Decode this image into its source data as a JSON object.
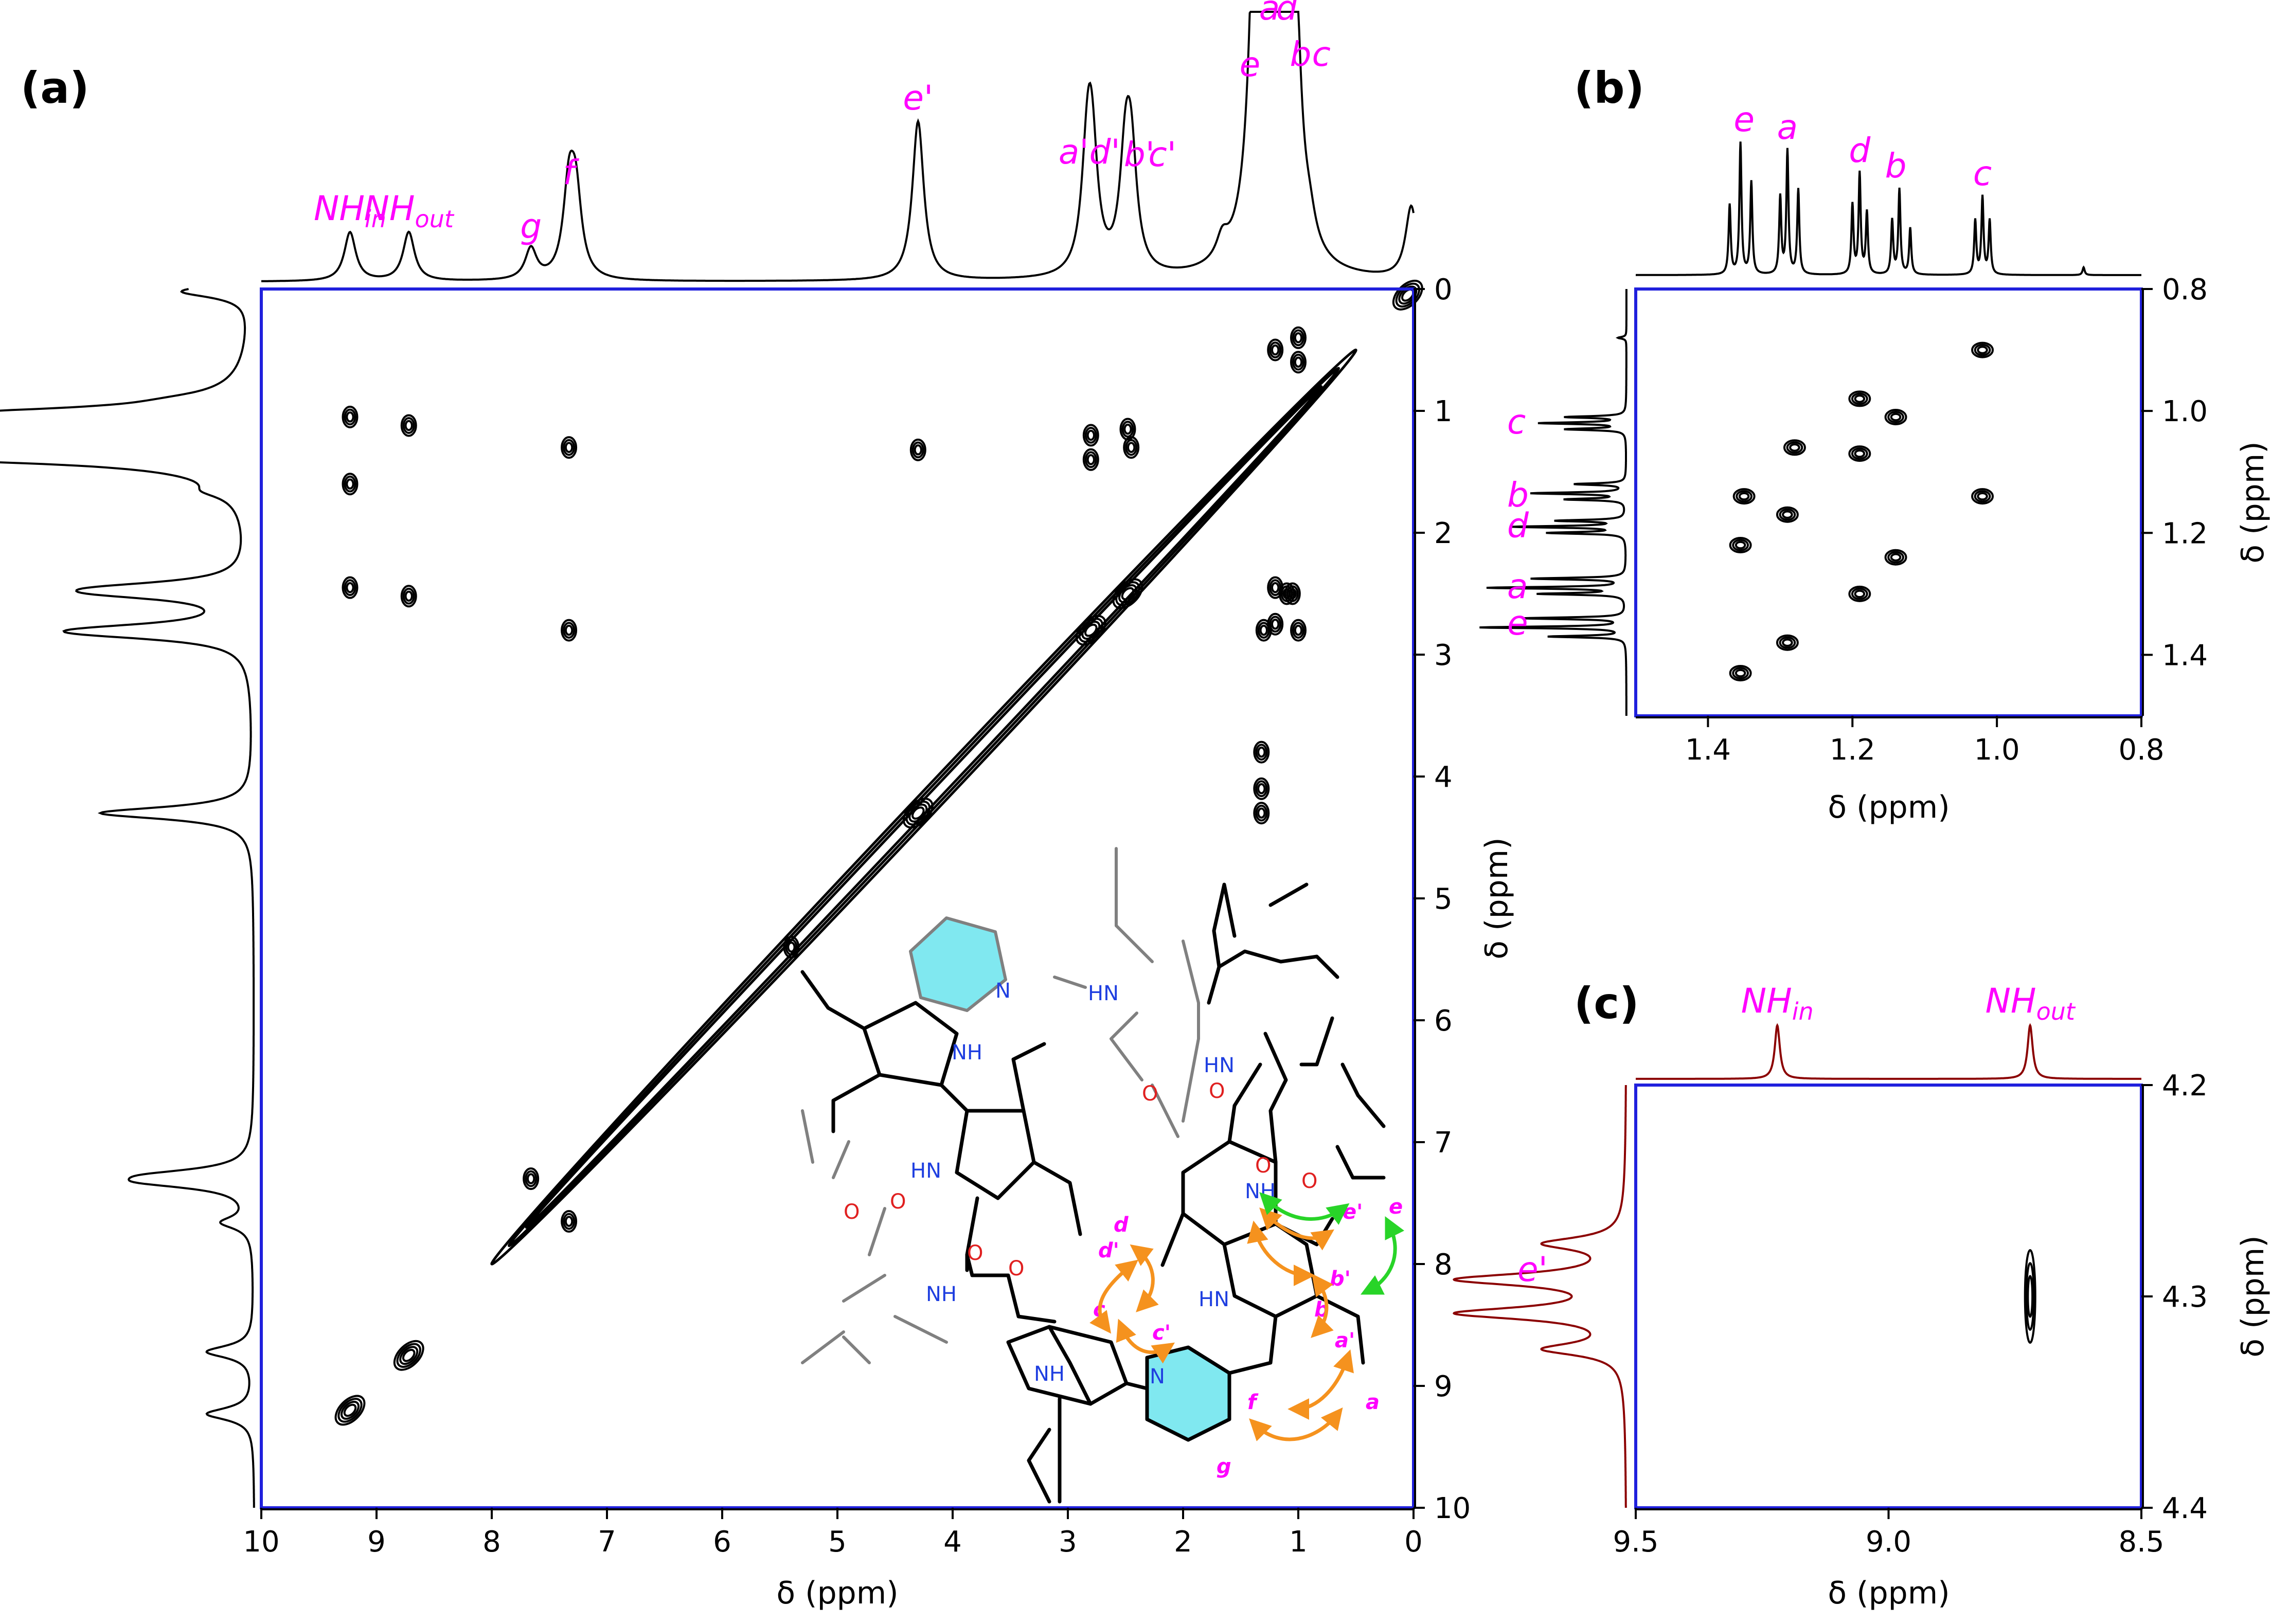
{
  "figure": {
    "panels": [
      "(a)",
      "(b)",
      "(c)"
    ]
  },
  "chart_data": [
    {
      "id": "a",
      "type": "scatter",
      "subtype": "2D COSY NMR contour plot",
      "label": "(a)",
      "xlabel": "δ (ppm)",
      "ylabel": "δ (ppm)",
      "xlim": [
        10,
        0
      ],
      "ylim": [
        0,
        10
      ],
      "xticks": [
        "10",
        "9",
        "8",
        "7",
        "6",
        "5",
        "4",
        "3",
        "2",
        "1",
        "0"
      ],
      "yticks": [
        "0",
        "1",
        "2",
        "3",
        "4",
        "5",
        "6",
        "7",
        "8",
        "9",
        "10"
      ],
      "frame_color": "#2020dd",
      "spectrum_color": "#000000",
      "peak_labels": [
        {
          "text": "NH",
          "sub": "in",
          "ppm": 9.23
        },
        {
          "text": "NH",
          "sub": "out",
          "ppm": 8.72
        },
        {
          "text": "g",
          "ppm": 7.66
        },
        {
          "text": "f",
          "ppm": 7.33
        },
        {
          "text": "e'",
          "ppm": 4.3
        },
        {
          "text": "a'",
          "ppm": 2.95
        },
        {
          "text": "d'",
          "ppm": 2.68
        },
        {
          "text": "b'",
          "ppm": 2.38
        },
        {
          "text": "c'",
          "ppm": 2.18
        },
        {
          "text": "e",
          "ppm": 1.42
        },
        {
          "text": "a",
          "ppm": 1.25
        },
        {
          "text": "d",
          "ppm": 1.1
        },
        {
          "text": "b",
          "ppm": 0.98
        },
        {
          "text": "c",
          "ppm": 0.8
        }
      ],
      "spectrum_peaks": [
        {
          "ppm": 9.23,
          "h": 0.19
        },
        {
          "ppm": 8.72,
          "h": 0.19
        },
        {
          "ppm": 7.66,
          "h": 0.12
        },
        {
          "ppm": 7.33,
          "h": 0.33
        },
        {
          "ppm": 7.27,
          "h": 0.3
        },
        {
          "ppm": 4.3,
          "h": 0.62
        },
        {
          "ppm": 2.83,
          "h": 0.41
        },
        {
          "ppm": 2.79,
          "h": 0.41
        },
        {
          "ppm": 2.5,
          "h": 0.4
        },
        {
          "ppm": 2.45,
          "h": 0.4
        },
        {
          "ppm": 1.66,
          "h": 0.08
        },
        {
          "ppm": 1.36,
          "h": 1.0
        },
        {
          "ppm": 1.32,
          "h": 0.95
        },
        {
          "ppm": 1.29,
          "h": 1.0
        },
        {
          "ppm": 1.2,
          "h": 0.98
        },
        {
          "ppm": 1.14,
          "h": 0.92
        },
        {
          "ppm": 1.03,
          "h": 0.9
        },
        {
          "ppm": 0.9,
          "h": 0.08
        },
        {
          "ppm": 0.02,
          "h": 0.28
        }
      ],
      "diagonal": {
        "from": 0.5,
        "to": 8.0
      },
      "cross_peaks": [
        {
          "x": 9.23,
          "y": 1.05
        },
        {
          "x": 8.72,
          "y": 1.12
        },
        {
          "x": 9.23,
          "y": 1.6
        },
        {
          "x": 9.23,
          "y": 2.45
        },
        {
          "x": 8.72,
          "y": 2.52
        },
        {
          "x": 7.33,
          "y": 1.3
        },
        {
          "x": 7.33,
          "y": 2.8
        },
        {
          "x": 4.3,
          "y": 1.32
        },
        {
          "x": 2.8,
          "y": 1.2
        },
        {
          "x": 2.48,
          "y": 1.15
        },
        {
          "x": 2.8,
          "y": 1.4
        },
        {
          "x": 2.45,
          "y": 1.3
        },
        {
          "x": 1.32,
          "y": 4.3
        },
        {
          "x": 1.2,
          "y": 2.45
        },
        {
          "x": 1.05,
          "y": 2.5
        },
        {
          "x": 1.3,
          "y": 2.8
        },
        {
          "x": 1.2,
          "y": 2.75
        },
        {
          "x": 1.1,
          "y": 2.5
        },
        {
          "x": 1.0,
          "y": 2.8
        },
        {
          "x": 7.33,
          "y": 7.65
        },
        {
          "x": 7.66,
          "y": 7.3
        },
        {
          "x": 5.4,
          "y": 5.4
        },
        {
          "x": 1.32,
          "y": 4.1
        },
        {
          "x": 1.32,
          "y": 3.8
        },
        {
          "x": 1.2,
          "y": 0.5
        },
        {
          "x": 1.0,
          "y": 0.6
        },
        {
          "x": 1.0,
          "y": 0.4
        }
      ],
      "diagonal_blobs": [
        {
          "x": 9.23,
          "y": 9.2
        },
        {
          "x": 8.72,
          "y": 8.75
        },
        {
          "x": 4.3,
          "y": 4.3
        },
        {
          "x": 2.8,
          "y": 2.8
        },
        {
          "x": 2.48,
          "y": 2.5
        },
        {
          "x": 0.05,
          "y": 0.05
        }
      ]
    },
    {
      "id": "b",
      "type": "scatter",
      "subtype": "2D COSY NMR contour plot (zoom)",
      "label": "(b)",
      "xlabel": "δ (ppm)",
      "ylabel": "δ (ppm)",
      "xlim": [
        1.5,
        0.8
      ],
      "ylim": [
        0.8,
        1.5
      ],
      "xticks": [
        "1.4",
        "1.2",
        "1.0",
        "0.8"
      ],
      "yticks": [
        "0.8",
        "1.0",
        "1.2",
        "1.4"
      ],
      "frame_color": "#2020dd",
      "spectrum_color": "#000000",
      "peak_labels": [
        {
          "text": "e",
          "ppm": 1.35
        },
        {
          "text": "a",
          "ppm": 1.29
        },
        {
          "text": "d",
          "ppm": 1.19
        },
        {
          "text": "b",
          "ppm": 1.14
        },
        {
          "text": "c",
          "ppm": 1.02
        }
      ],
      "spectrum_peaks": [
        {
          "ppm": 1.37,
          "h": 0.45
        },
        {
          "ppm": 1.355,
          "h": 0.85
        },
        {
          "ppm": 1.34,
          "h": 0.6
        },
        {
          "ppm": 1.3,
          "h": 0.5
        },
        {
          "ppm": 1.29,
          "h": 0.8
        },
        {
          "ppm": 1.275,
          "h": 0.55
        },
        {
          "ppm": 1.2,
          "h": 0.45
        },
        {
          "ppm": 1.19,
          "h": 0.65
        },
        {
          "ppm": 1.18,
          "h": 0.4
        },
        {
          "ppm": 1.145,
          "h": 0.35
        },
        {
          "ppm": 1.135,
          "h": 0.55
        },
        {
          "ppm": 1.12,
          "h": 0.3
        },
        {
          "ppm": 1.03,
          "h": 0.35
        },
        {
          "ppm": 1.02,
          "h": 0.5
        },
        {
          "ppm": 1.01,
          "h": 0.35
        },
        {
          "ppm": 0.88,
          "h": 0.05
        }
      ],
      "cross_peaks": [
        {
          "x": 1.02,
          "y": 0.9
        },
        {
          "x": 1.19,
          "y": 0.98
        },
        {
          "x": 1.14,
          "y": 1.01
        },
        {
          "x": 1.28,
          "y": 1.06
        },
        {
          "x": 1.19,
          "y": 1.07
        },
        {
          "x": 1.35,
          "y": 1.14
        },
        {
          "x": 1.02,
          "y": 1.14
        },
        {
          "x": 1.29,
          "y": 1.17
        },
        {
          "x": 1.355,
          "y": 1.22
        },
        {
          "x": 1.14,
          "y": 1.24
        },
        {
          "x": 1.19,
          "y": 1.3
        },
        {
          "x": 1.29,
          "y": 1.38
        },
        {
          "x": 1.355,
          "y": 1.43
        }
      ]
    },
    {
      "id": "c",
      "type": "scatter",
      "subtype": "2D NMR contour plot (NH / e' region)",
      "label": "(c)",
      "xlabel": "δ (ppm)",
      "ylabel": "δ (ppm)",
      "xlim": [
        9.5,
        8.5
      ],
      "ylim": [
        4.2,
        4.4
      ],
      "xticks": [
        "9.5",
        "9.0",
        "8.5"
      ],
      "yticks": [
        "4.2",
        "4.3",
        "4.4"
      ],
      "frame_color": "#2020dd",
      "spectrum_color": "#8b0000",
      "peak_labels": [
        {
          "text": "NH",
          "sub": "in",
          "ppm": 9.22
        },
        {
          "text": "NH",
          "sub": "out",
          "ppm": 8.72
        }
      ],
      "side_label": {
        "text": "e'",
        "ppm": 4.3
      },
      "spectrum_peaks": [
        {
          "ppm": 9.22,
          "h": 0.8
        },
        {
          "ppm": 8.72,
          "h": 0.8
        }
      ],
      "side_peaks": [
        {
          "ppm": 4.275,
          "h": 0.45
        },
        {
          "ppm": 4.292,
          "h": 0.95
        },
        {
          "ppm": 4.308,
          "h": 0.95
        },
        {
          "ppm": 4.325,
          "h": 0.45
        }
      ],
      "cross_peaks": [
        {
          "x": 8.72,
          "y": 4.3
        }
      ]
    }
  ],
  "structure": {
    "atom_labels": {
      "n": "N",
      "nh": "NH",
      "hn": "HN",
      "o": "O"
    },
    "proton_labels": [
      {
        "id": "d",
        "text": "d"
      },
      {
        "id": "dp",
        "text": "d'"
      },
      {
        "id": "c",
        "text": "c"
      },
      {
        "id": "cp",
        "text": "c'"
      },
      {
        "id": "ep",
        "text": "e'"
      },
      {
        "id": "e",
        "text": "e"
      },
      {
        "id": "bp",
        "text": "b'"
      },
      {
        "id": "b",
        "text": "b"
      },
      {
        "id": "ap",
        "text": "a'"
      },
      {
        "id": "a",
        "text": "a"
      },
      {
        "id": "f",
        "text": "f"
      },
      {
        "id": "g",
        "text": "g"
      }
    ],
    "colors": {
      "pyridine_fill": "#80e8f0",
      "arrow_orange": "#f5921e",
      "arrow_green": "#28d428",
      "nitrogen": "#1f3fe0",
      "oxygen": "#e02020",
      "bond": "#000000",
      "bond_grey": "#808080"
    }
  }
}
